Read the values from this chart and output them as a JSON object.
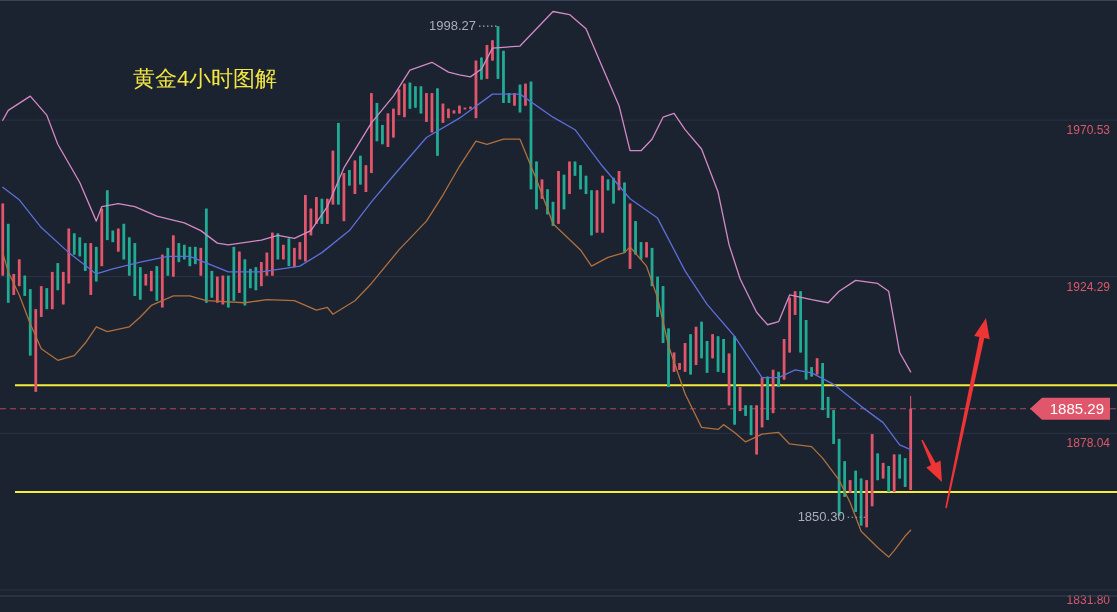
{
  "chart_data": {
    "type": "candlestick",
    "title": "黄金4小时图解",
    "categories": [
      null,
      null,
      null,
      null,
      null,
      null,
      null,
      null,
      null,
      null,
      null,
      null,
      null,
      null,
      null,
      null,
      null,
      null,
      null,
      null,
      null,
      null,
      null,
      null,
      null,
      null,
      null,
      null,
      null,
      null,
      null,
      null,
      null,
      null,
      null,
      null,
      null,
      null,
      null,
      null,
      null,
      null,
      null,
      null,
      null,
      null,
      null,
      null,
      null,
      null,
      null,
      null,
      null,
      null,
      null,
      null,
      null,
      null,
      null,
      null,
      null,
      null,
      null,
      null,
      null,
      null,
      null,
      null,
      null,
      null,
      null,
      null,
      null,
      null,
      null,
      null,
      null,
      null,
      null,
      null,
      null,
      null,
      null,
      null,
      null,
      null,
      null,
      null,
      null,
      null,
      null,
      null,
      null,
      null,
      null,
      null,
      null,
      null,
      null,
      null,
      null,
      null,
      null,
      null,
      null,
      null,
      null,
      null,
      null,
      null,
      null,
      null,
      null,
      null,
      null,
      null,
      null,
      null,
      null,
      null,
      null,
      null,
      null,
      null,
      null,
      null,
      null,
      null,
      null,
      null,
      null,
      null,
      null,
      null,
      null,
      null,
      null,
      null,
      null,
      null,
      null,
      null,
      null,
      null,
      null,
      null,
      null,
      null,
      null,
      null,
      null,
      null,
      null,
      null,
      null,
      null,
      null,
      null,
      null,
      null,
      null,
      null,
      null,
      null,
      null,
      null,
      null,
      null,
      null,
      null,
      null,
      null,
      null,
      null,
      null,
      null,
      null,
      null,
      null,
      null,
      null,
      null,
      null,
      null,
      null,
      null,
      null,
      null,
      null,
      null,
      null,
      null,
      null,
      null,
      null,
      null,
      null,
      null,
      null,
      null,
      null,
      null,
      null
    ],
    "ohlc": [
      [
        1924.6,
        1945.9,
        1924.6,
        1945.9
      ],
      [
        1939.9,
        1939.9,
        1916.6,
        1916.6
      ],
      [
        1918.9,
        1925.1,
        1918.9,
        1925.1
      ],
      [
        1921.5,
        1929.4,
        1921.5,
        1929.4
      ],
      [
        1924.6,
        1924.6,
        1918.6,
        1918.6
      ],
      [
        1920.6,
        1920.6,
        1901.0,
        1901.0
      ],
      [
        1890.3,
        1914.7,
        1890.3,
        1914.7
      ],
      [
        1912.4,
        1921.5,
        1912.4,
        1921.5
      ],
      [
        1920.9,
        1920.9,
        1914.7,
        1914.7
      ],
      [
        1914.7,
        1925.7,
        1914.7,
        1925.7
      ],
      [
        1928.3,
        1928.3,
        1920.3,
        1920.3
      ],
      [
        1916.1,
        1925.7,
        1916.1,
        1925.7
      ],
      [
        1922.3,
        1938.5,
        1922.3,
        1938.5
      ],
      [
        1937.1,
        1937.1,
        1930.8,
        1930.8
      ],
      [
        1935.9,
        1935.9,
        1930.3,
        1930.3
      ],
      [
        1934.2,
        1934.2,
        1926.0,
        1926.0
      ],
      [
        1918.9,
        1934.2,
        1918.9,
        1934.2
      ],
      [
        1933.1,
        1933.1,
        1922.9,
        1922.9
      ],
      [
        1927.4,
        1944.4,
        1927.4,
        1944.4
      ],
      [
        1949.8,
        1949.8,
        1935.1,
        1935.1
      ],
      [
        1937.9,
        1937.9,
        1934.5,
        1934.5
      ],
      [
        1931.7,
        1938.5,
        1931.7,
        1938.5
      ],
      [
        1939.9,
        1939.9,
        1929.4,
        1929.4
      ],
      [
        1935.9,
        1935.9,
        1924.6,
        1924.6
      ],
      [
        1934.2,
        1934.2,
        1918.6,
        1918.6
      ],
      [
        1927.1,
        1927.1,
        1917.5,
        1917.5
      ],
      [
        1921.7,
        1925.1,
        1921.7,
        1925.1
      ],
      [
        1920.0,
        1926.0,
        1920.0,
        1926.0
      ],
      [
        1927.4,
        1927.4,
        1917.2,
        1917.2
      ],
      [
        1915.2,
        1930.8,
        1915.2,
        1930.8
      ],
      [
        1932.8,
        1932.8,
        1924.6,
        1924.6
      ],
      [
        1924.3,
        1936.5,
        1924.3,
        1936.5
      ],
      [
        1934.2,
        1934.2,
        1928.6,
        1928.6
      ],
      [
        1933.7,
        1933.7,
        1929.4,
        1929.4
      ],
      [
        1933.1,
        1933.1,
        1927.4,
        1927.4
      ],
      [
        1933.1,
        1933.1,
        1928.0,
        1928.0
      ],
      [
        1924.6,
        1932.8,
        1924.6,
        1932.8
      ],
      [
        1944.4,
        1944.4,
        1916.6,
        1916.6
      ],
      [
        1926.0,
        1926.0,
        1918.1,
        1918.1
      ],
      [
        1916.6,
        1924.3,
        1916.6,
        1924.3
      ],
      [
        1916.1,
        1924.6,
        1916.1,
        1924.6
      ],
      [
        1924.6,
        1924.6,
        1915.2,
        1915.2
      ],
      [
        1933.1,
        1933.1,
        1917.2,
        1917.2
      ],
      [
        1919.5,
        1931.7,
        1919.5,
        1931.7
      ],
      [
        1929.4,
        1929.4,
        1915.8,
        1915.8
      ],
      [
        1926.6,
        1926.6,
        1920.9,
        1920.9
      ],
      [
        1927.1,
        1927.1,
        1920.3,
        1920.3
      ],
      [
        1921.5,
        1928.6,
        1921.5,
        1928.6
      ],
      [
        1924.6,
        1931.4,
        1924.6,
        1931.4
      ],
      [
        1924.6,
        1937.3,
        1924.6,
        1937.3
      ],
      [
        1937.1,
        1937.1,
        1929.4,
        1929.4
      ],
      [
        1929.4,
        1933.7,
        1929.4,
        1933.7
      ],
      [
        1935.6,
        1935.6,
        1927.4,
        1927.4
      ],
      [
        1927.1,
        1932.8,
        1927.1,
        1932.8
      ],
      [
        1929.4,
        1934.5,
        1929.4,
        1934.5
      ],
      [
        1928.8,
        1948.4,
        1928.8,
        1948.4
      ],
      [
        1936.5,
        1944.4,
        1936.5,
        1944.4
      ],
      [
        1939.9,
        1947.8,
        1939.9,
        1947.8
      ],
      [
        1947.3,
        1947.3,
        1939.9,
        1939.9
      ],
      [
        1939.9,
        1947.3,
        1939.9,
        1947.3
      ],
      [
        1945.6,
        1961.5,
        1945.6,
        1961.5
      ],
      [
        1969.7,
        1969.7,
        1945.6,
        1945.6
      ],
      [
        1940.7,
        1954.9,
        1940.7,
        1954.9
      ],
      [
        1955.8,
        1955.8,
        1951.2,
        1951.2
      ],
      [
        1948.7,
        1958.6,
        1948.7,
        1958.6
      ],
      [
        1960.0,
        1960.0,
        1951.5,
        1951.5
      ],
      [
        1949.3,
        1957.2,
        1949.3,
        1957.2
      ],
      [
        1954.9,
        1978.5,
        1954.9,
        1978.5
      ],
      [
        1975.6,
        1975.6,
        1964.3,
        1964.3
      ],
      [
        1969.1,
        1969.1,
        1963.4,
        1963.4
      ],
      [
        1962.6,
        1972.5,
        1962.6,
        1972.5
      ],
      [
        1965.4,
        1973.9,
        1965.4,
        1973.9
      ],
      [
        1972.0,
        1979.6,
        1972.0,
        1979.6
      ],
      [
        1971.4,
        1981.3,
        1971.4,
        1981.3
      ],
      [
        1981.6,
        1981.6,
        1973.9,
        1973.9
      ],
      [
        1980.5,
        1980.5,
        1974.2,
        1974.2
      ],
      [
        1980.5,
        1980.5,
        1972.5,
        1972.5
      ],
      [
        1970.0,
        1978.5,
        1970.0,
        1978.5
      ],
      [
        1966.9,
        1978.5,
        1966.9,
        1978.5
      ],
      [
        1979.9,
        1979.9,
        1960.0,
        1960.0
      ],
      [
        1969.7,
        1975.4,
        1969.7,
        1975.4
      ],
      [
        1971.1,
        1973.9,
        1971.1,
        1973.9
      ],
      [
        1972.5,
        1973.4,
        1972.5,
        1973.4
      ],
      [
        1972.5,
        1974.8,
        1972.5,
        1974.8
      ],
      [
        1973.7,
        1974.2,
        1973.7,
        1974.2
      ],
      [
        1973.9,
        1974.5,
        1973.9,
        1974.5
      ],
      [
        1971.1,
        1988.1,
        1971.1,
        1988.1
      ],
      [
        1989.0,
        1989.0,
        1982.5,
        1982.5
      ],
      [
        1982.7,
        1992.7,
        1982.7,
        1992.7
      ],
      [
        1988.1,
        1994.1,
        1988.1,
        1994.1
      ],
      [
        1998.27,
        1998.27,
        1982.7,
        1982.7
      ],
      [
        1991.0,
        1991.0,
        1975.6,
        1975.6
      ],
      [
        1978.5,
        1978.5,
        1975.6,
        1975.6
      ],
      [
        1974.8,
        1978.5,
        1974.8,
        1978.5
      ],
      [
        1981.0,
        1981.0,
        1972.8,
        1972.8
      ],
      [
        1974.8,
        1981.3,
        1974.8,
        1981.3
      ],
      [
        1981.9,
        1981.9,
        1950.1,
        1950.1
      ],
      [
        1958.3,
        1958.3,
        1944.2,
        1944.2
      ],
      [
        1947.3,
        1953.0,
        1947.3,
        1953.0
      ],
      [
        1950.1,
        1950.1,
        1942.7,
        1942.7
      ],
      [
        1946.4,
        1946.4,
        1939.3,
        1939.3
      ],
      [
        1939.9,
        1955.5,
        1939.9,
        1955.5
      ],
      [
        1954.4,
        1954.4,
        1944.2,
        1944.2
      ],
      [
        1948.7,
        1958.3,
        1948.7,
        1958.3
      ],
      [
        1958.3,
        1958.3,
        1954.1,
        1954.1
      ],
      [
        1957.2,
        1957.2,
        1950.1,
        1950.1
      ],
      [
        1954.1,
        1954.1,
        1948.7,
        1948.7
      ],
      [
        1949.8,
        1949.8,
        1936.5,
        1936.5
      ],
      [
        1937.3,
        1949.8,
        1937.3,
        1949.8
      ],
      [
        1937.3,
        1954.1,
        1937.3,
        1954.1
      ],
      [
        1953.0,
        1953.0,
        1949.8,
        1949.8
      ],
      [
        1953.5,
        1953.5,
        1945.9,
        1945.9
      ],
      [
        1949.8,
        1955.5,
        1949.8,
        1955.5
      ],
      [
        1952.1,
        1952.1,
        1931.4,
        1931.4
      ],
      [
        1926.6,
        1945.9,
        1926.6,
        1945.9
      ],
      [
        1940.7,
        1940.7,
        1930.8,
        1930.8
      ],
      [
        1934.5,
        1934.5,
        1929.4,
        1929.4
      ],
      [
        1930.0,
        1934.5,
        1930.0,
        1934.5
      ],
      [
        1932.8,
        1932.8,
        1921.5,
        1921.5
      ],
      [
        1924.3,
        1924.3,
        1912.4,
        1912.4
      ],
      [
        1921.5,
        1921.5,
        1904.7,
        1904.7
      ],
      [
        1909.0,
        1909.0,
        1891.7,
        1891.7
      ],
      [
        1896.2,
        1901.9,
        1896.2,
        1901.9
      ],
      [
        1896.8,
        1898.8,
        1896.8,
        1898.8
      ],
      [
        1896.2,
        1904.7,
        1896.2,
        1904.7
      ],
      [
        1907.3,
        1907.3,
        1895.4,
        1895.4
      ],
      [
        1898.2,
        1909.5,
        1898.2,
        1909.5
      ],
      [
        1911.0,
        1911.0,
        1900.2,
        1900.2
      ],
      [
        1905.3,
        1905.3,
        1895.9,
        1895.9
      ],
      [
        1900.2,
        1907.3,
        1900.2,
        1907.3
      ],
      [
        1906.7,
        1906.7,
        1896.2,
        1896.2
      ],
      [
        1905.9,
        1905.9,
        1895.9,
        1895.9
      ],
      [
        1886.3,
        1901.6,
        1886.3,
        1901.6
      ],
      [
        1906.7,
        1906.7,
        1880.6,
        1880.6
      ],
      [
        1884.6,
        1891.7,
        1884.6,
        1891.7
      ],
      [
        1886.3,
        1886.3,
        1883.2,
        1883.2
      ],
      [
        1886.3,
        1886.3,
        1877.5,
        1877.5
      ],
      [
        1871.8,
        1886.3,
        1871.8,
        1886.3
      ],
      [
        1879.8,
        1894.5,
        1879.8,
        1894.5
      ],
      [
        1894.8,
        1894.8,
        1882.0,
        1882.0
      ],
      [
        1884.0,
        1896.8,
        1884.0,
        1896.8
      ],
      [
        1896.2,
        1896.2,
        1891.7,
        1891.7
      ],
      [
        1893.9,
        1905.9,
        1893.9,
        1905.9
      ],
      [
        1901.9,
        1918.1,
        1901.9,
        1918.1
      ],
      [
        1913.0,
        1920.0,
        1913.0,
        1920.0
      ],
      [
        1920.0,
        1920.0,
        1901.9,
        1901.9
      ],
      [
        1911.5,
        1911.5,
        1893.9,
        1893.9
      ],
      [
        1897.6,
        1897.6,
        1894.8,
        1894.8
      ],
      [
        1895.4,
        1900.2,
        1895.4,
        1900.2
      ],
      [
        1898.8,
        1898.8,
        1884.9,
        1884.9
      ],
      [
        1888.8,
        1888.8,
        1882.6,
        1882.6
      ],
      [
        1884.9,
        1884.9,
        1874.9,
        1874.9
      ],
      [
        1876.4,
        1876.4,
        1853.7,
        1853.7
      ],
      [
        1869.8,
        1869.8,
        1859.3,
        1859.3
      ],
      [
        1860.5,
        1864.2,
        1860.5,
        1864.2
      ],
      [
        1867.0,
        1867.0,
        1854.8,
        1854.8
      ],
      [
        1864.7,
        1864.7,
        1850.8,
        1850.8
      ],
      [
        1850.3,
        1864.2,
        1850.3,
        1864.2
      ],
      [
        1856.5,
        1877.8,
        1856.5,
        1877.8
      ],
      [
        1872.1,
        1872.1,
        1864.2,
        1864.2
      ],
      [
        1864.7,
        1869.3,
        1864.7,
        1869.3
      ],
      [
        1868.4,
        1868.4,
        1860.7,
        1860.7
      ],
      [
        1860.7,
        1871.8,
        1860.7,
        1871.8
      ],
      [
        1871.8,
        1871.8,
        1864.7,
        1864.7
      ],
      [
        1870.7,
        1870.7,
        1862.2,
        1862.2
      ],
      [
        1861.3,
        1889.1,
        1861.3,
        1885.29
      ],
      null,
      null,
      null,
      null,
      null,
      null,
      null,
      null,
      null,
      null,
      null,
      null,
      null,
      null,
      null,
      null,
      null,
      null,
      null,
      null,
      null,
      null,
      null,
      null,
      null,
      null,
      null,
      null,
      null,
      null,
      null,
      null,
      null,
      null,
      null,
      null,
      null
    ],
    "colors": [
      "#e0566b",
      "#22ab94",
      "#e0566b",
      "#e0566b",
      "#22ab94",
      "#22ab94",
      "#e0566b",
      "#e0566b",
      "#22ab94",
      "#e0566b",
      "#22ab94",
      "#e0566b",
      "#e0566b",
      "#22ab94",
      "#22ab94",
      "#22ab94",
      "#e0566b",
      "#22ab94",
      "#e0566b",
      "#22ab94",
      "#22ab94",
      "#e0566b",
      "#22ab94",
      "#22ab94",
      "#22ab94",
      "#22ab94",
      "#e0566b",
      "#e0566b",
      "#22ab94",
      "#e0566b",
      "#22ab94",
      "#e0566b",
      "#22ab94",
      "#22ab94",
      "#22ab94",
      "#22ab94",
      "#e0566b",
      "#22ab94",
      "#22ab94",
      "#e0566b",
      "#e0566b",
      "#22ab94",
      "#22ab94",
      "#e0566b",
      "#22ab94",
      "#22ab94",
      "#22ab94",
      "#e0566b",
      "#e0566b",
      "#e0566b",
      "#22ab94",
      "#e0566b",
      "#22ab94",
      "#e0566b",
      "#e0566b",
      "#e0566b",
      "#e0566b",
      "#e0566b",
      "#22ab94",
      "#e0566b",
      "#e0566b",
      "#22ab94",
      "#e0566b",
      "#22ab94",
      "#e0566b",
      "#22ab94",
      "#e0566b",
      "#e0566b",
      "#22ab94",
      "#22ab94",
      "#e0566b",
      "#e0566b",
      "#e0566b",
      "#e0566b",
      "#22ab94",
      "#22ab94",
      "#22ab94",
      "#e0566b",
      "#e0566b",
      "#22ab94",
      "#e0566b",
      "#e0566b",
      "#e0566b",
      "#e0566b",
      "#e0566b",
      "#e0566b",
      "#e0566b",
      "#22ab94",
      "#e0566b",
      "#e0566b",
      "#22ab94",
      "#22ab94",
      "#22ab94",
      "#e0566b",
      "#22ab94",
      "#e0566b",
      "#22ab94",
      "#22ab94",
      "#e0566b",
      "#22ab94",
      "#22ab94",
      "#e0566b",
      "#22ab94",
      "#e0566b",
      "#22ab94",
      "#22ab94",
      "#22ab94",
      "#22ab94",
      "#e0566b",
      "#e0566b",
      "#22ab94",
      "#22ab94",
      "#e0566b",
      "#22ab94",
      "#e0566b",
      "#22ab94",
      "#22ab94",
      "#e0566b",
      "#22ab94",
      "#22ab94",
      "#22ab94",
      "#22ab94",
      "#e0566b",
      "#e0566b",
      "#e0566b",
      "#22ab94",
      "#e0566b",
      "#22ab94",
      "#22ab94",
      "#e0566b",
      "#22ab94",
      "#22ab94",
      "#e0566b",
      "#22ab94",
      "#e0566b",
      "#22ab94",
      "#22ab94",
      "#e0566b",
      "#e0566b",
      "#22ab94",
      "#e0566b",
      "#22ab94",
      "#e0566b",
      "#e0566b",
      "#e0566b",
      "#22ab94",
      "#22ab94",
      "#22ab94",
      "#e0566b",
      "#22ab94",
      "#22ab94",
      "#22ab94",
      "#22ab94",
      "#22ab94",
      "#e0566b",
      "#22ab94",
      "#22ab94",
      "#e0566b",
      "#e0566b",
      "#22ab94",
      "#e0566b",
      "#22ab94",
      "#e0566b",
      "#22ab94",
      "#22ab94",
      "#e0566b",
      null,
      null,
      null,
      null,
      null,
      null,
      null,
      null,
      null,
      null,
      null,
      null,
      null,
      null,
      null,
      null,
      null,
      null,
      null,
      null,
      null,
      null,
      null,
      null,
      null,
      null,
      null,
      null,
      null,
      null,
      null,
      null,
      null,
      null,
      null,
      null,
      null
    ],
    "series": [
      {
        "type": "line",
        "color": "#d48ac6",
        "values": [
          1970.5,
          1973.4,
          null,
          null,
          null,
          1977.6,
          null,
          null,
          1972.0,
          null,
          1963.4,
          null,
          null,
          null,
          1952.1,
          null,
          null,
          1940.7,
          1945.0,
          null,
          null,
          1945.9,
          null,
          null,
          1945.0,
          null,
          null,
          null,
          1942.2,
          null,
          null,
          null,
          null,
          1940.2,
          null,
          null,
          1937.9,
          null,
          null,
          1934.2,
          null,
          1933.7,
          null,
          null,
          null,
          null,
          null,
          1935.1,
          null,
          null,
          1936.5,
          null,
          null,
          1935.6,
          null,
          null,
          1937.9,
          null,
          null,
          1945.0,
          null,
          null,
          1956.4,
          null,
          null,
          null,
          null,
          1969.7,
          null,
          null,
          null,
          1977.6,
          null,
          null,
          1985.3,
          null,
          null,
          null,
          1987.6,
          null,
          null,
          1984.7,
          null,
          1983.9,
          null,
          1983.3,
          null,
          1985.6,
          null,
          1991.8,
          null,
          null,
          null,
          null,
          1992.4,
          null,
          null,
          1997.5,
          null,
          null,
          2002.6,
          null,
          null,
          2001.7,
          null,
          null,
          1997.5,
          null,
          null,
          1986.1,
          null,
          null,
          1974.8,
          null,
          1961.5,
          null,
          1961.5,
          null,
          1964.9,
          null,
          1971.4,
          null,
          1972.5,
          null,
          1967.7,
          null,
          null,
          1962.0,
          null,
          null,
          1949.3,
          null,
          1933.7,
          null,
          1923.7,
          null,
          null,
          1913.8,
          null,
          1910.1,
          null,
          1911.0,
          null,
          1918.9,
          null,
          null,
          null,
          1917.5,
          null,
          null,
          1916.6,
          null,
          1920.0,
          null,
          null,
          1923.2,
          null,
          null,
          null,
          1922.3,
          null,
          1920.0,
          null,
          1901.9,
          null,
          1896.2,
          null,
          null,
          null,
          null,
          null,
          null,
          null,
          null,
          null,
          null,
          null,
          null,
          null,
          null,
          null,
          null,
          null,
          null,
          null,
          null,
          null,
          null,
          null,
          null,
          null,
          null,
          null,
          null,
          null,
          null,
          null,
          null,
          null,
          null,
          null,
          null,
          null
        ]
      },
      {
        "type": "line",
        "color": "#5d6fd8",
        "values": [
          1950.7,
          null,
          null,
          1947.0,
          null,
          null,
          null,
          1938.8,
          null,
          null,
          null,
          null,
          1931.4,
          null,
          null,
          null,
          null,
          1925.1,
          null,
          null,
          1926.6,
          null,
          null,
          null,
          null,
          1928.6,
          null,
          null,
          null,
          null,
          1930.3,
          null,
          null,
          null,
          1930.3,
          null,
          null,
          null,
          null,
          null,
          null,
          1925.7,
          null,
          null,
          null,
          null,
          null,
          1925.7,
          null,
          null,
          null,
          null,
          null,
          null,
          1927.4,
          null,
          null,
          null,
          1931.4,
          null,
          null,
          null,
          null,
          1937.9,
          null,
          null,
          null,
          1946.4,
          null,
          null,
          null,
          1954.1,
          null,
          null,
          null,
          null,
          null,
          1965.4,
          null,
          null,
          null,
          null,
          null,
          1971.1,
          null,
          null,
          null,
          null,
          null,
          1978.2,
          null,
          null,
          null,
          null,
          1978.2,
          null,
          null,
          null,
          null,
          null,
          1971.4,
          null,
          null,
          null,
          1967.7,
          null,
          null,
          null,
          null,
          1956.9,
          null,
          null,
          null,
          null,
          1947.3,
          null,
          null,
          null,
          null,
          1941.6,
          null,
          null,
          null,
          null,
          1926.0,
          null,
          null,
          null,
          1916.1,
          null,
          null,
          null,
          null,
          1906.7,
          null,
          null,
          null,
          null,
          1894.5,
          null,
          null,
          1894.5,
          null,
          null,
          1896.8,
          null,
          null,
          1895.9,
          null,
          null,
          null,
          1892.5,
          null,
          null,
          null,
          null,
          1886.0,
          null,
          null,
          null,
          1881.2,
          null,
          null,
          1874.6,
          null,
          1873.2,
          null,
          null,
          null,
          null,
          null,
          null,
          null,
          null,
          null,
          null,
          null,
          null,
          null,
          null,
          null,
          null,
          null,
          null,
          null,
          null,
          null,
          null,
          null,
          null,
          null,
          null,
          null,
          null,
          null,
          null,
          null,
          null,
          null,
          null,
          null,
          null,
          null
        ]
      },
      {
        "type": "line",
        "color": "#b0703c",
        "values": [
          1931.4,
          1925.7,
          null,
          1918.9,
          null,
          1910.4,
          null,
          1903.0,
          null,
          null,
          1899.6,
          null,
          null,
          1901.0,
          null,
          1904.7,
          null,
          1909.5,
          null,
          1908.1,
          null,
          null,
          null,
          1909.5,
          null,
          1912.4,
          null,
          1915.8,
          null,
          null,
          null,
          1918.6,
          null,
          null,
          1918.6,
          null,
          null,
          1917.2,
          null,
          null,
          null,
          null,
          null,
          null,
          1916.6,
          null,
          null,
          null,
          1917.5,
          null,
          null,
          null,
          null,
          1917.2,
          null,
          null,
          null,
          1914.4,
          null,
          1915.2,
          1913.2,
          null,
          null,
          null,
          1917.2,
          null,
          null,
          1922.3,
          null,
          null,
          null,
          null,
          1932.2,
          null,
          null,
          null,
          null,
          1940.7,
          null,
          null,
          1948.4,
          null,
          null,
          1956.9,
          null,
          null,
          1964.3,
          null,
          1963.4,
          null,
          null,
          1964.9,
          null,
          null,
          1964.9,
          null,
          null,
          1953.0,
          null,
          null,
          1939.9,
          null,
          null,
          null,
          null,
          1932.2,
          null,
          1927.4,
          null,
          null,
          1930.0,
          null,
          null,
          1931.4,
          1933.1,
          null,
          null,
          1927.4,
          null,
          1918.1,
          null,
          1903.9,
          null,
          null,
          1889.7,
          null,
          null,
          1879.8,
          null,
          null,
          1879.2,
          1880.6,
          null,
          1878.3,
          null,
          1875.5,
          null,
          null,
          1877.8,
          null,
          null,
          1878.3,
          null,
          1874.9,
          null,
          null,
          null,
          1874.1,
          null,
          1870.7,
          null,
          null,
          1864.2,
          null,
          1857.6,
          null,
          1849.1,
          null,
          null,
          1844.3,
          null,
          1841.5,
          1843.4,
          null,
          1847.7,
          1849.4,
          null,
          null,
          null,
          null,
          null,
          null,
          null,
          null,
          null,
          null,
          null,
          null,
          null,
          null,
          null,
          null,
          null,
          null,
          null,
          null,
          null,
          null,
          null,
          null,
          null,
          null,
          null,
          null,
          null,
          null,
          null,
          null,
          null,
          null,
          null,
          null,
          null
        ]
      }
    ],
    "ylim": [
      1830,
      2006
    ],
    "yticks": [
      {
        "value": 1831.8,
        "label": "1831.80"
      },
      1878.04,
      1924.29,
      1970.53
    ],
    "tick_labels": "y",
    "grid": "y",
    "ref_lines": [
      {
        "axis": "y",
        "value": 1892.2,
        "color": "#f5ec3c",
        "line_style": "solid"
      },
      {
        "axis": "y",
        "value": 1860.7,
        "color": "#f5ec3c",
        "line_style": "solid"
      },
      {
        "axis": "y",
        "value": 1885.29,
        "label": "1885.29",
        "color": "#e0566b",
        "line_style": "dashed"
      }
    ],
    "annotations": [
      "1998.27",
      "1850.30"
    ]
  }
}
